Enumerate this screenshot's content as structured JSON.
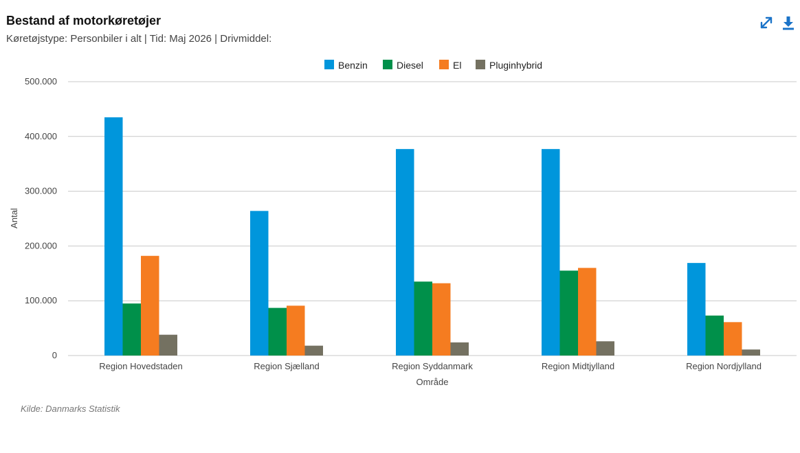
{
  "header": {
    "title": "Bestand af motorkøretøjer",
    "subtitle": "Køretøjstype: Personbiler i alt | Tid: Maj 2026 | Drivmiddel:"
  },
  "toolbar": {
    "expand_icon": "expand-icon",
    "download_icon": "download-icon",
    "icon_color": "#1a73c8"
  },
  "source": "Kilde: Danmarks Statistik",
  "chart_data": {
    "type": "bar",
    "categories": [
      "Region Hovedstaden",
      "Region Sjælland",
      "Region Syddanmark",
      "Region Midtjylland",
      "Region Nordjylland"
    ],
    "series": [
      {
        "name": "Benzin",
        "color": "#0096dc",
        "values": [
          435000,
          264000,
          377000,
          377000,
          169000
        ]
      },
      {
        "name": "Diesel",
        "color": "#00904a",
        "values": [
          95000,
          87000,
          135000,
          155000,
          73000
        ]
      },
      {
        "name": "El",
        "color": "#f57c20",
        "values": [
          182000,
          91000,
          132000,
          160000,
          61000
        ]
      },
      {
        "name": "Pluginhybrid",
        "color": "#747161",
        "values": [
          38000,
          18000,
          24000,
          26000,
          11000
        ]
      }
    ],
    "xlabel": "Område",
    "ylabel": "Antal",
    "ylim": [
      0,
      500000
    ],
    "yticks": [
      0,
      100000,
      200000,
      300000,
      400000,
      500000
    ],
    "ytick_labels": [
      "0",
      "100.000",
      "200.000",
      "300.000",
      "400.000",
      "500.000"
    ],
    "grid": true,
    "legend_position": "top-center"
  }
}
